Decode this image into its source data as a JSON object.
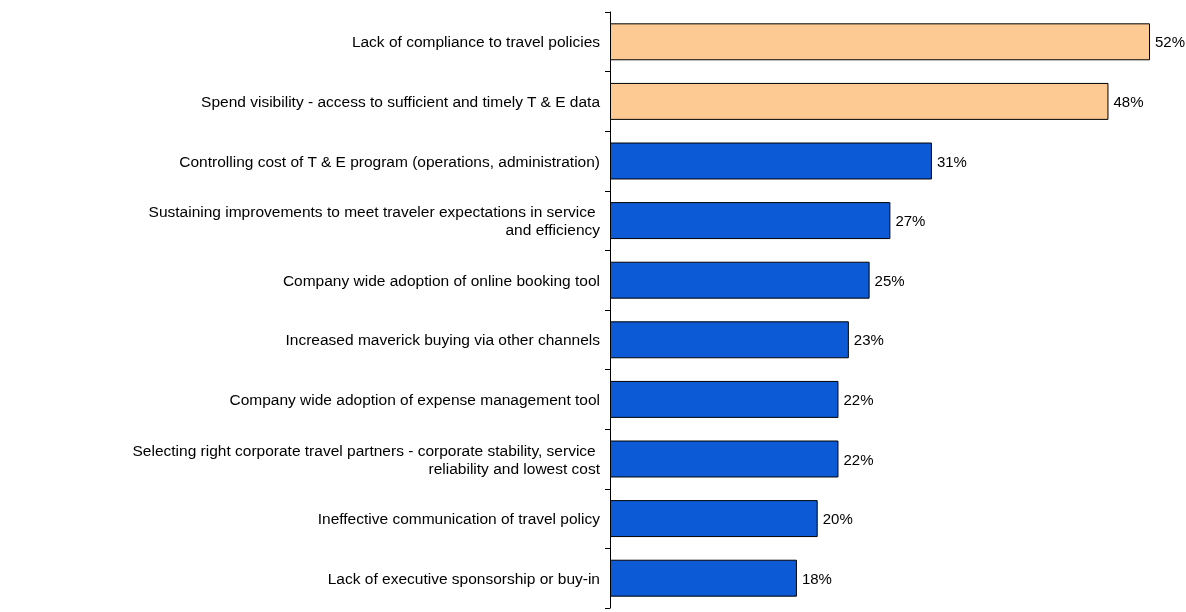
{
  "chart_data": {
    "type": "bar",
    "orientation": "horizontal",
    "categories": [
      "Lack of compliance to travel policies",
      "Spend visibility - access to sufficient and timely T & E data",
      "Controlling cost of T & E program (operations, administration)",
      "Sustaining improvements to meet traveler expectations in service and efficiency",
      "Company wide adoption of online booking tool",
      "Increased maverick buying via other channels",
      "Company wide adoption of expense management tool",
      "Selecting right corporate travel partners - corporate stability, service reliability and lowest cost",
      "Ineffective communication of travel policy",
      "Lack of executive sponsorship or buy-in"
    ],
    "values": [
      52,
      48,
      31,
      27,
      25,
      23,
      22,
      22,
      20,
      18
    ],
    "colors": [
      "#fdca94",
      "#fdca94",
      "#0d5ad6",
      "#0d5ad6",
      "#0d5ad6",
      "#0d5ad6",
      "#0d5ad6",
      "#0d5ad6",
      "#0d5ad6",
      "#0d5ad6"
    ],
    "value_labels": [
      "52%",
      "48%",
      "31%",
      "27%",
      "25%",
      "23%",
      "22%",
      "22%",
      "20%",
      "18%"
    ]
  }
}
